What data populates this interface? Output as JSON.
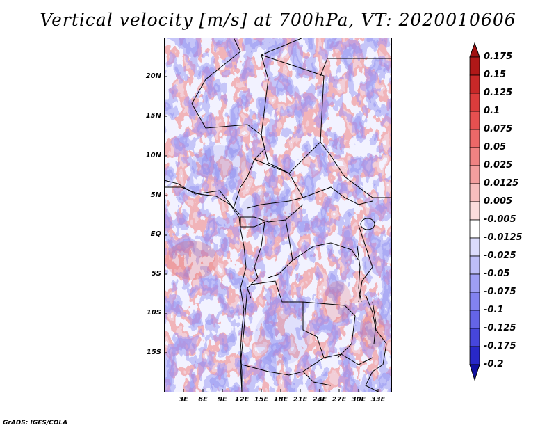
{
  "title": "Vertical velocity [m/s] at 700hPa, VT: 2020010606",
  "credit": "GrADS: IGES/COLA",
  "map": {
    "lat_ticks": [
      "20N",
      "15N",
      "10N",
      "5N",
      "EQ",
      "5S",
      "10S",
      "15S"
    ],
    "lon_ticks": [
      "3E",
      "6E",
      "9E",
      "12E",
      "15E",
      "18E",
      "21E",
      "24E",
      "27E",
      "30E",
      "33E"
    ]
  },
  "colorbar": {
    "labels": [
      "0.175",
      "0.15",
      "0.125",
      "0.1",
      "0.075",
      "0.05",
      "0.025",
      "0.0125",
      "0.005",
      "-0.005",
      "-0.0125",
      "-0.025",
      "-0.05",
      "-0.075",
      "-0.1",
      "-0.125",
      "-0.175",
      "-0.2"
    ],
    "colors": [
      "#b01818",
      "#c82828",
      "#dc3c3c",
      "#e65050",
      "#ec6868",
      "#f08282",
      "#f49e9e",
      "#f8bebe",
      "#fcdcdc",
      "#ffffff",
      "#dcdcfc",
      "#bebef8",
      "#9e9ef4",
      "#8282f0",
      "#6464e6",
      "#4646dc",
      "#2828c8",
      "#1616b0"
    ],
    "top_arrow_color": "#a01010",
    "bottom_arrow_color": "#1010a0"
  }
}
